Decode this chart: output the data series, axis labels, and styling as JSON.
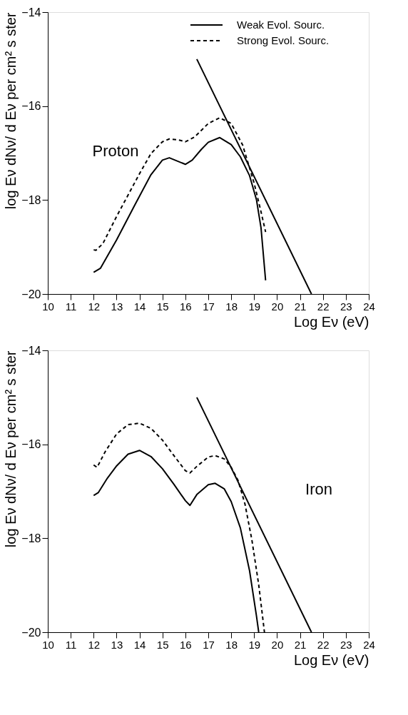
{
  "chart_data": [
    {
      "type": "line",
      "xlabel": "Log Eν (eV)",
      "ylabel": "log Eν dNν/ d Eν  per cm² s ster",
      "annotations": [
        "Proton"
      ],
      "xlim": [
        10,
        24
      ],
      "xticks": [
        10,
        11,
        12,
        13,
        14,
        15,
        16,
        17,
        18,
        19,
        20,
        21,
        22,
        23,
        24
      ],
      "ylim": [
        -20,
        -14
      ],
      "yticks": [
        -20,
        -18,
        -16,
        -14
      ],
      "legend": "top right",
      "series": [
        {
          "name": "Weak Evol. Sourc.",
          "color": "#000000",
          "line_style": "solid",
          "x": [
            12,
            12.3,
            13,
            13.8,
            14.5,
            15,
            15.3,
            15.7,
            16,
            16.3,
            16.7,
            17,
            17.5,
            18,
            18.4,
            18.8,
            19.1,
            19.3,
            19.5
          ],
          "values": [
            -19.54,
            -19.45,
            -18.85,
            -18.1,
            -17.46,
            -17.15,
            -17.1,
            -17.18,
            -17.24,
            -17.15,
            -16.92,
            -16.77,
            -16.67,
            -16.82,
            -17.08,
            -17.48,
            -17.99,
            -18.59,
            -19.71
          ]
        },
        {
          "name": "Strong Evol. Sourc.",
          "color": "#000000",
          "line_style": "dashed",
          "x": [
            12,
            12.1,
            12.4,
            13,
            14,
            14.5,
            15,
            15.3,
            15.7,
            16,
            16.4,
            17,
            17.5,
            18,
            18.5,
            19,
            19.3,
            19.5
          ],
          "values": [
            -19.06,
            -19.07,
            -18.93,
            -18.35,
            -17.44,
            -17.01,
            -16.76,
            -16.7,
            -16.72,
            -16.76,
            -16.66,
            -16.37,
            -16.25,
            -16.37,
            -16.83,
            -17.64,
            -18.25,
            -18.68
          ]
        },
        {
          "color": "#000000",
          "line_style": "solid",
          "x": [
            16.5,
            21.5
          ],
          "values": [
            -15,
            -20
          ]
        }
      ]
    },
    {
      "type": "line",
      "xlabel": "Log Eν (eV)",
      "ylabel": "log Eν dNν/ d Eν  per cm² s ster",
      "annotations": [
        "Iron"
      ],
      "xlim": [
        10,
        24
      ],
      "xticks": [
        10,
        11,
        12,
        13,
        14,
        15,
        16,
        17,
        18,
        19,
        20,
        21,
        22,
        23,
        24
      ],
      "ylim": [
        -20,
        -14
      ],
      "yticks": [
        -20,
        -18,
        -16,
        -14
      ],
      "series": [
        {
          "color": "#000000",
          "line_style": "solid",
          "x": [
            12,
            12.2,
            12.6,
            13,
            13.5,
            14,
            14.5,
            15,
            15.5,
            16,
            16.2,
            16.5,
            17,
            17.3,
            17.7,
            18,
            18.4,
            18.8,
            19.1,
            19.2
          ],
          "values": [
            -17.09,
            -17.03,
            -16.72,
            -16.46,
            -16.21,
            -16.13,
            -16.26,
            -16.52,
            -16.85,
            -17.2,
            -17.3,
            -17.07,
            -16.86,
            -16.83,
            -16.95,
            -17.22,
            -17.78,
            -18.69,
            -19.65,
            -20
          ]
        },
        {
          "color": "#000000",
          "line_style": "dashed",
          "x": [
            12,
            12.15,
            12.5,
            13,
            13.5,
            14,
            14.5,
            15,
            15.5,
            16,
            16.2,
            16.5,
            17,
            17.3,
            17.7,
            18,
            18.3,
            18.6,
            18.9,
            19.2,
            19.45
          ],
          "values": [
            -16.44,
            -16.49,
            -16.16,
            -15.78,
            -15.58,
            -15.55,
            -15.66,
            -15.91,
            -16.24,
            -16.56,
            -16.61,
            -16.47,
            -16.27,
            -16.24,
            -16.31,
            -16.49,
            -16.77,
            -17.27,
            -18.03,
            -18.99,
            -20
          ]
        },
        {
          "color": "#000000",
          "line_style": "solid",
          "x": [
            16.5,
            21.5
          ],
          "values": [
            -15,
            -20
          ]
        }
      ]
    }
  ]
}
